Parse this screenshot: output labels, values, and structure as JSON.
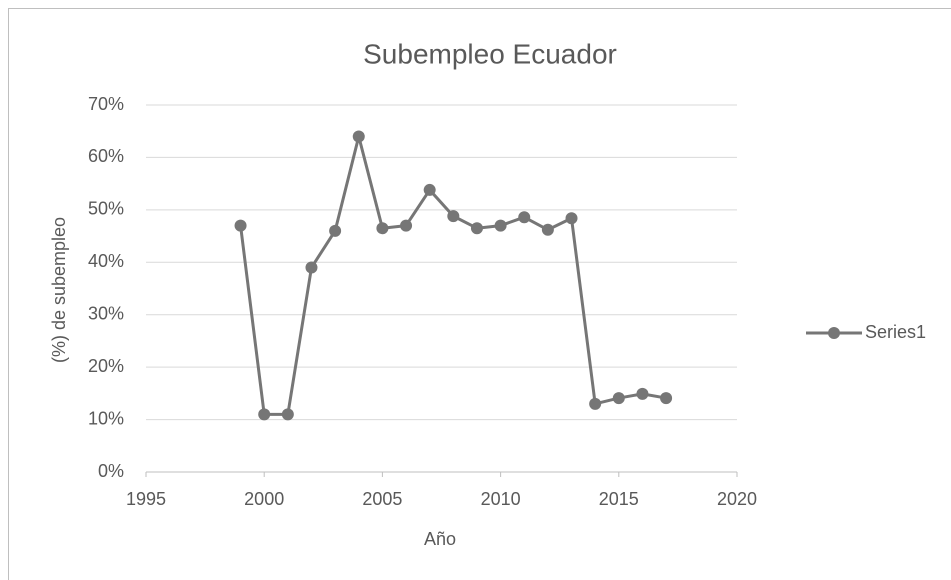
{
  "chart_data": {
    "type": "line",
    "title": "Subempleo Ecuador",
    "x_label": "Año",
    "y_label": "(%) de subempleo",
    "x": [
      1999,
      2000,
      2001,
      2002,
      2003,
      2004,
      2005,
      2006,
      2007,
      2008,
      2009,
      2010,
      2011,
      2012,
      2013,
      2014,
      2015,
      2016,
      2017
    ],
    "series": [
      {
        "name": "Series1",
        "color": "#767676",
        "values": [
          47,
          11,
          11,
          39,
          46,
          64,
          46.5,
          47,
          53.8,
          48.8,
          46.5,
          47,
          48.6,
          46.2,
          48.4,
          13,
          14.1,
          14.9,
          14.1
        ]
      }
    ],
    "xlim": [
      1995,
      2020
    ],
    "xticks": [
      1995,
      2000,
      2005,
      2010,
      2015,
      2020
    ],
    "ylim": [
      0,
      70
    ],
    "yticks": [
      {
        "value": 0,
        "label": "0%"
      },
      {
        "value": 10,
        "label": "10%"
      },
      {
        "value": 20,
        "label": "20%"
      },
      {
        "value": 30,
        "label": "30%"
      },
      {
        "value": 40,
        "label": "40%"
      },
      {
        "value": 50,
        "label": "50%"
      },
      {
        "value": 60,
        "label": "60%"
      },
      {
        "value": 70,
        "label": "70%"
      }
    ],
    "grid": true,
    "legend": "right"
  }
}
